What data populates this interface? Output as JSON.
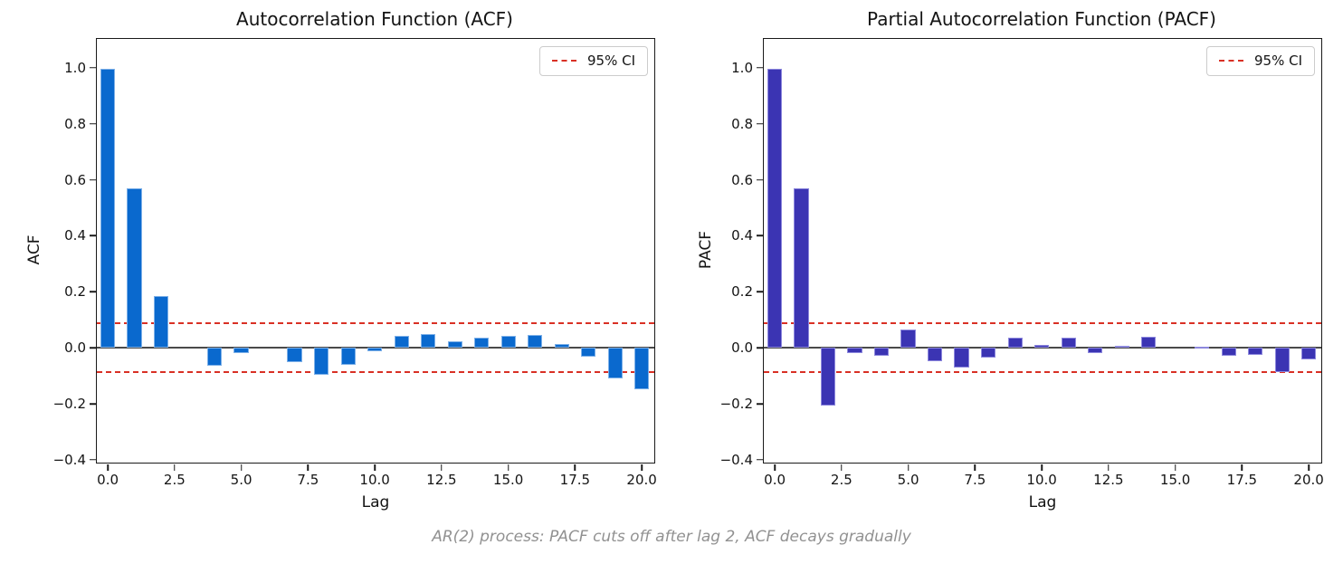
{
  "caption": "AR(2) process: PACF cuts off after lag 2, ACF decays gradually",
  "colors": {
    "acf_bar": "#0a69ce",
    "acf_bar_edge": "#7db0e8",
    "pacf_bar": "#3b34b3",
    "pacf_bar_edge": "#8d88dd",
    "ci_line": "#d93025",
    "zero_line": "#4a4a4a",
    "caption_text": "#919191"
  },
  "chart_data": [
    {
      "type": "bar",
      "title": "Autocorrelation Function (ACF)",
      "xlabel": "Lag",
      "ylabel": "ACF",
      "legend_label": "95% CI",
      "legend_position": "upper right",
      "grid": false,
      "ci_level": 0.088,
      "x": [
        0,
        1,
        2,
        3,
        4,
        5,
        6,
        7,
        8,
        9,
        10,
        11,
        12,
        13,
        14,
        15,
        16,
        17,
        18,
        19,
        20
      ],
      "values": [
        0.995,
        0.57,
        0.185,
        0.0,
        -0.065,
        -0.019,
        0.0,
        -0.05,
        -0.096,
        -0.06,
        -0.012,
        0.042,
        0.048,
        0.023,
        0.035,
        0.042,
        0.045,
        0.013,
        -0.032,
        -0.11,
        -0.147
      ],
      "bar_color": "#0a69ce",
      "bar_edge": "#7db0e8",
      "bar_width": 0.55,
      "xlim": [
        -0.41,
        20.47
      ],
      "ylim": [
        -0.41,
        1.103
      ],
      "xticks": {
        "values": [
          0,
          2.5,
          5,
          7.5,
          10,
          12.5,
          15,
          17.5,
          20
        ],
        "labels": [
          "0.0",
          "2.5",
          "5.0",
          "7.5",
          "10.0",
          "12.5",
          "15.0",
          "17.5",
          "20.0"
        ]
      },
      "yticks": {
        "values": [
          1.0,
          0.8,
          0.6,
          0.4,
          0.2,
          0.0,
          -0.2,
          -0.4
        ],
        "labels": [
          "1.0",
          "0.8",
          "0.6",
          "0.4",
          "0.2",
          "0.0",
          "−0.2",
          "−0.4"
        ]
      }
    },
    {
      "type": "bar",
      "title": "Partial Autocorrelation Function (PACF)",
      "xlabel": "Lag",
      "ylabel": "PACF",
      "legend_label": "95% CI",
      "legend_position": "upper right",
      "grid": false,
      "ci_level": 0.088,
      "x": [
        0,
        1,
        2,
        3,
        4,
        5,
        6,
        7,
        8,
        9,
        10,
        11,
        12,
        13,
        14,
        15,
        16,
        17,
        18,
        19,
        20
      ],
      "values": [
        0.995,
        0.57,
        -0.205,
        -0.02,
        -0.028,
        0.065,
        -0.048,
        -0.072,
        -0.035,
        0.035,
        0.01,
        0.035,
        -0.02,
        0.008,
        0.04,
        0.0,
        0.005,
        -0.03,
        -0.025,
        -0.088,
        -0.043
      ],
      "bar_color": "#3b34b3",
      "bar_edge": "#8d88dd",
      "bar_width": 0.55,
      "xlim": [
        -0.41,
        20.47
      ],
      "ylim": [
        -0.41,
        1.103
      ],
      "xticks": {
        "values": [
          0,
          2.5,
          5,
          7.5,
          10,
          12.5,
          15,
          17.5,
          20
        ],
        "labels": [
          "0.0",
          "2.5",
          "5.0",
          "7.5",
          "10.0",
          "12.5",
          "15.0",
          "17.5",
          "20.0"
        ]
      },
      "yticks": {
        "values": [
          1.0,
          0.8,
          0.6,
          0.4,
          0.2,
          0.0,
          -0.2,
          -0.4
        ],
        "labels": [
          "1.0",
          "0.8",
          "0.6",
          "0.4",
          "0.2",
          "0.0",
          "−0.2",
          "−0.4"
        ]
      }
    }
  ]
}
